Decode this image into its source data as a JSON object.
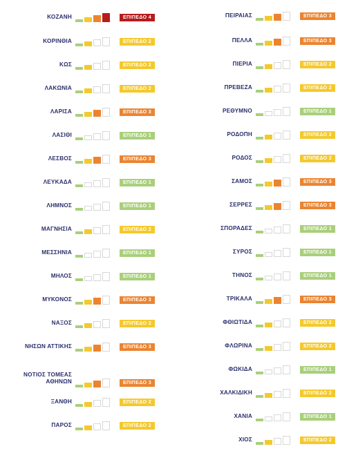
{
  "colors": {
    "level1": "#a9cf7b",
    "level2": "#f4c92d",
    "level3": "#eb8431",
    "level4": "#b71c1c",
    "text": "#2a2f6b",
    "empty": "#ffffff"
  },
  "level_labels": {
    "1": "ΕΠΙΠΕΔΟ 1",
    "2": "ΕΠΙΠΕΔΟ 2",
    "3": "ΕΠΙΠΕΔΟ 3",
    "4": "ΕΠΙΠΕΔΟ 4"
  },
  "left_column": [
    {
      "name": "ΚΟΖΑΝΗ",
      "level": 4
    },
    {
      "name": "ΚΟΡΙΝΘΙΑ",
      "level": 2
    },
    {
      "name": "ΚΩΣ",
      "level": 2
    },
    {
      "name": "ΛΑΚΩΝΙΑ",
      "level": 2
    },
    {
      "name": "ΛΑΡΙΣΑ",
      "level": 3
    },
    {
      "name": "ΛΑΣΙΘΙ",
      "level": 1
    },
    {
      "name": "ΛΕΣΒΟΣ",
      "level": 3
    },
    {
      "name": "ΛΕΥΚΑΔΑ",
      "level": 1
    },
    {
      "name": "ΛΗΜΝΟΣ",
      "level": 1
    },
    {
      "name": "ΜΑΓΝΗΣΙΑ",
      "level": 2
    },
    {
      "name": "ΜΕΣΣΗΝΙΑ",
      "level": 1
    },
    {
      "name": "ΜΗΛΟΣ",
      "level": 1
    },
    {
      "name": "ΜΥΚΟΝΟΣ",
      "level": 3
    },
    {
      "name": "ΝΑΞΟΣ",
      "level": 2
    },
    {
      "name": "ΝΗΣΩΝ ΑΤΤΙΚΗΣ",
      "level": 3
    },
    {
      "name": "ΝΟΤΙΟΣ ΤΟΜΕΑΣ\nΑΘΗΝΩΝ",
      "level": 3
    },
    {
      "name": "ΞΑΝΘΗ",
      "level": 2
    },
    {
      "name": "ΠΑΡΟΣ",
      "level": 2
    }
  ],
  "right_column": [
    {
      "name": "ΠΕΙΡΑΙΑΣ",
      "level": 3
    },
    {
      "name": "ΠΕΛΛΑ",
      "level": 3
    },
    {
      "name": "ΠΙΕΡΙΑ",
      "level": 2
    },
    {
      "name": "ΠΡΕΒΕΖΑ",
      "level": 2
    },
    {
      "name": "ΡΕΘΥΜΝΟ",
      "level": 1
    },
    {
      "name": "ΡΟΔΟΠΗ",
      "level": 2
    },
    {
      "name": "ΡΟΔΟΣ",
      "level": 2
    },
    {
      "name": "ΣΑΜΟΣ",
      "level": 3
    },
    {
      "name": "ΣΕΡΡΕΣ",
      "level": 3
    },
    {
      "name": "ΣΠΟΡΑΔΕΣ",
      "level": 1
    },
    {
      "name": "ΣΥΡΟΣ",
      "level": 1
    },
    {
      "name": "ΤΗΝΟΣ",
      "level": 1
    },
    {
      "name": "ΤΡΙΚΑΛΑ",
      "level": 3
    },
    {
      "name": "ΦΘΙΩΤΙΔΑ",
      "level": 2
    },
    {
      "name": "ΦΛΩΡΙΝΑ",
      "level": 2
    },
    {
      "name": "ΦΩΚΙΔΑ",
      "level": 1
    },
    {
      "name": "ΧΑΛΚΙΔΙΚΗ",
      "level": 2
    },
    {
      "name": "ΧΑΝΙΑ",
      "level": 1
    },
    {
      "name": "ΧΙΟΣ",
      "level": 2
    }
  ]
}
